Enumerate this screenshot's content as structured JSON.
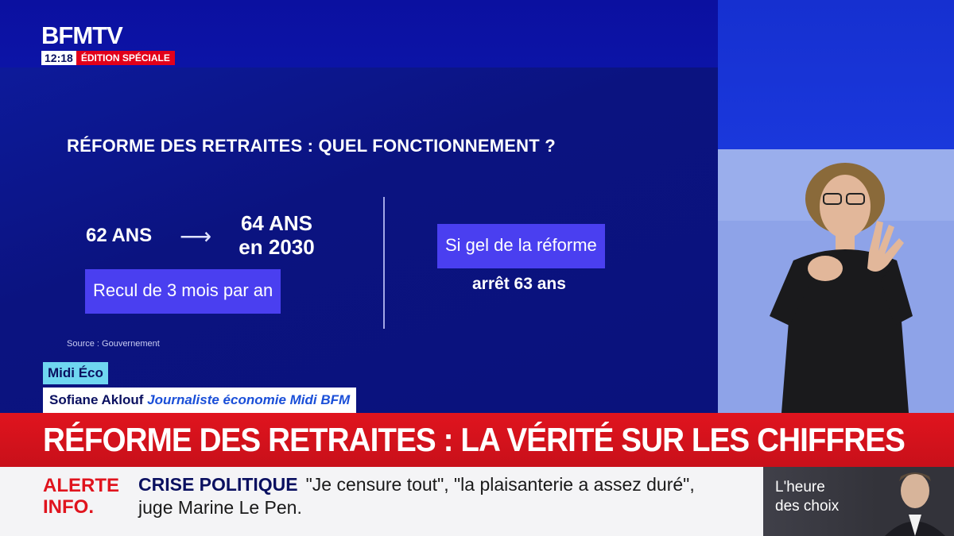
{
  "header": {
    "logo": "BFMTV",
    "time": "12:18",
    "edition": "ÉDITION SPÉCIALE"
  },
  "infographic": {
    "title": "RÉFORME DES RETRAITES : QUEL FONCTIONNEMENT ?",
    "age_from": "62 ANS",
    "arrow": "⟶",
    "age_to_line1": "64 ANS",
    "age_to_line2": "en 2030",
    "recul_label": "Recul de 3 mois par an",
    "gel_label": "Si gel de la réforme",
    "stop_label": "arrêt 63 ans",
    "source": "Source : Gouvernement"
  },
  "lower_third": {
    "program": "Midi Éco",
    "speaker_name": "Sofiane Aklouf",
    "speaker_role": "Journaliste économie Midi BFM",
    "headline": "RÉFORME DES RETRAITES : LA VÉRITÉ SUR LES CHIFFRES"
  },
  "ticker": {
    "alert_line1": "ALERTE",
    "alert_line2": "INFO.",
    "topic": "CRISE POLITIQUE",
    "text_line1": "\"Je censure tout\", \"la plaisanterie a assez duré\",",
    "text_line2": "juge Marine Le Pen."
  },
  "promo": {
    "line1": "L'heure",
    "line2": "des choix"
  },
  "colors": {
    "brand_blue": "#0b10a0",
    "accent_red": "#e0141e",
    "chip_purple": "#4a3ff0",
    "program_cyan": "#6fd6f0"
  }
}
